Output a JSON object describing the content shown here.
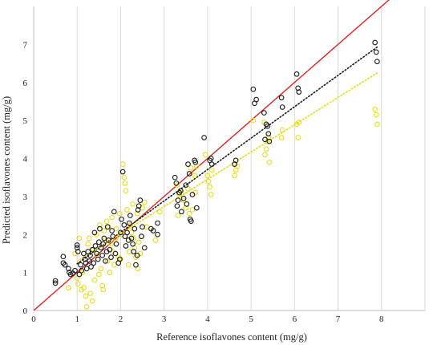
{
  "chart_data": {
    "type": "scatter",
    "xlabel": "Reference isoflavones content (mg/g)",
    "ylabel": "Predicted isoflavones content (mg/g)",
    "xlim": [
      0,
      9
    ],
    "ylim": [
      0,
      8
    ],
    "x_ticks": [
      "0",
      "1",
      "2",
      "3",
      "4",
      "5",
      "6",
      "7",
      "8"
    ],
    "y_ticks": [
      "0",
      "1",
      "2",
      "3",
      "4",
      "5",
      "6",
      "7"
    ],
    "grid": "vertical",
    "legend": "none",
    "colors": {
      "series_black": "#1a1a1a",
      "series_yellow": "#e6dc1e",
      "identity_line": "#e02424",
      "grid": "#d9d9d9",
      "axis": "#bfbfbf"
    },
    "series": [
      {
        "marker": "open-circle",
        "color": "#1a1a1a",
        "points": [
          [
            0.5,
            0.78
          ],
          [
            0.5,
            0.72
          ],
          [
            0.68,
            1.42
          ],
          [
            0.68,
            1.25
          ],
          [
            0.72,
            1.2
          ],
          [
            0.8,
            1.1
          ],
          [
            0.82,
            1.0
          ],
          [
            0.85,
            0.95
          ],
          [
            0.9,
            0.98
          ],
          [
            0.95,
            1.05
          ],
          [
            1.0,
            1.65
          ],
          [
            1.0,
            1.72
          ],
          [
            1.02,
            1.55
          ],
          [
            1.05,
            0.95
          ],
          [
            1.08,
            1.2
          ],
          [
            1.1,
            1.05
          ],
          [
            1.15,
            1.5
          ],
          [
            1.18,
            1.35
          ],
          [
            1.2,
            1.25
          ],
          [
            1.22,
            1.1
          ],
          [
            1.25,
            1.55
          ],
          [
            1.28,
            1.3
          ],
          [
            1.3,
            1.45
          ],
          [
            1.32,
            1.15
          ],
          [
            1.35,
            1.6
          ],
          [
            1.38,
            1.25
          ],
          [
            1.4,
            2.05
          ],
          [
            1.42,
            1.7
          ],
          [
            1.45,
            1.5
          ],
          [
            1.48,
            1.35
          ],
          [
            1.5,
            1.8
          ],
          [
            1.52,
            2.15
          ],
          [
            1.55,
            1.65
          ],
          [
            1.58,
            1.45
          ],
          [
            1.6,
            1.75
          ],
          [
            1.62,
            1.9
          ],
          [
            1.65,
            1.3
          ],
          [
            1.68,
            1.55
          ],
          [
            1.7,
            2.2
          ],
          [
            1.72,
            1.85
          ],
          [
            1.75,
            1.6
          ],
          [
            1.78,
            1.4
          ],
          [
            1.8,
            2.1
          ],
          [
            1.82,
            1.95
          ],
          [
            1.85,
            2.6
          ],
          [
            1.88,
            1.5
          ],
          [
            1.9,
            1.75
          ],
          [
            1.95,
            1.25
          ],
          [
            1.98,
            1.35
          ],
          [
            2.0,
            2.05
          ],
          [
            2.02,
            2.4
          ],
          [
            2.05,
            3.65
          ],
          [
            2.08,
            2.25
          ],
          [
            2.1,
            1.95
          ],
          [
            2.12,
            1.7
          ],
          [
            2.15,
            2.05
          ],
          [
            2.18,
            1.85
          ],
          [
            2.2,
            2.3
          ],
          [
            2.22,
            2.5
          ],
          [
            2.25,
            1.9
          ],
          [
            2.28,
            1.75
          ],
          [
            2.3,
            1.55
          ],
          [
            2.32,
            2.15
          ],
          [
            2.35,
            1.2
          ],
          [
            2.38,
            1.45
          ],
          [
            2.4,
            2.65
          ],
          [
            2.42,
            2.75
          ],
          [
            2.45,
            2.9
          ],
          [
            2.48,
            1.95
          ],
          [
            2.5,
            2.2
          ],
          [
            2.55,
            1.65
          ],
          [
            2.7,
            2.15
          ],
          [
            2.75,
            2.1
          ],
          [
            2.85,
            2.3
          ],
          [
            2.85,
            2.0
          ],
          [
            3.25,
            3.5
          ],
          [
            3.28,
            3.35
          ],
          [
            3.3,
            2.75
          ],
          [
            3.32,
            2.9
          ],
          [
            3.35,
            3.1
          ],
          [
            3.38,
            3.15
          ],
          [
            3.4,
            2.6
          ],
          [
            3.45,
            2.95
          ],
          [
            3.5,
            3.3
          ],
          [
            3.52,
            2.8
          ],
          [
            3.55,
            3.85
          ],
          [
            3.58,
            3.6
          ],
          [
            3.6,
            2.4
          ],
          [
            3.62,
            2.35
          ],
          [
            3.65,
            3.05
          ],
          [
            3.7,
            3.95
          ],
          [
            3.72,
            3.9
          ],
          [
            3.75,
            2.7
          ],
          [
            3.92,
            4.55
          ],
          [
            4.05,
            3.95
          ],
          [
            4.08,
            4.0
          ],
          [
            4.1,
            3.85
          ],
          [
            4.62,
            3.85
          ],
          [
            4.65,
            3.95
          ],
          [
            5.05,
            5.82
          ],
          [
            5.08,
            5.45
          ],
          [
            5.12,
            5.55
          ],
          [
            5.3,
            5.2
          ],
          [
            5.32,
            4.5
          ],
          [
            5.35,
            4.9
          ],
          [
            5.38,
            4.85
          ],
          [
            5.4,
            4.65
          ],
          [
            5.42,
            4.45
          ],
          [
            5.7,
            5.6
          ],
          [
            5.72,
            5.35
          ],
          [
            6.05,
            6.22
          ],
          [
            6.08,
            5.85
          ],
          [
            6.1,
            5.75
          ],
          [
            7.85,
            7.05
          ],
          [
            7.88,
            6.8
          ],
          [
            7.9,
            6.55
          ]
        ]
      },
      {
        "marker": "open-circle",
        "color": "#e6dc1e",
        "points": [
          [
            0.8,
            0.6
          ],
          [
            0.95,
            1.5
          ],
          [
            1.0,
            0.85
          ],
          [
            1.02,
            0.7
          ],
          [
            1.05,
            1.9
          ],
          [
            1.1,
            0.55
          ],
          [
            1.12,
            1.0
          ],
          [
            1.15,
            0.6
          ],
          [
            1.2,
            0.38
          ],
          [
            1.22,
            0.1
          ],
          [
            1.25,
            1.75
          ],
          [
            1.28,
            1.9
          ],
          [
            1.3,
            0.45
          ],
          [
            1.35,
            0.25
          ],
          [
            1.38,
            1.6
          ],
          [
            1.4,
            0.8
          ],
          [
            1.45,
            2.0
          ],
          [
            1.48,
            1.45
          ],
          [
            1.5,
            0.95
          ],
          [
            1.52,
            2.25
          ],
          [
            1.55,
            1.1
          ],
          [
            1.58,
            0.65
          ],
          [
            1.6,
            0.55
          ],
          [
            1.62,
            2.1
          ],
          [
            1.65,
            1.85
          ],
          [
            1.68,
            2.35
          ],
          [
            1.7,
            1.3
          ],
          [
            1.72,
            2.2
          ],
          [
            1.75,
            1.0
          ],
          [
            1.78,
            1.75
          ],
          [
            1.8,
            2.45
          ],
          [
            1.82,
            1.55
          ],
          [
            1.85,
            1.2
          ],
          [
            1.88,
            1.9
          ],
          [
            1.9,
            2.15
          ],
          [
            1.95,
            1.4
          ],
          [
            1.98,
            2.55
          ],
          [
            2.0,
            1.35
          ],
          [
            2.02,
            2.0
          ],
          [
            2.05,
            3.85
          ],
          [
            2.08,
            3.5
          ],
          [
            2.1,
            3.35
          ],
          [
            2.12,
            3.15
          ],
          [
            2.15,
            2.65
          ],
          [
            2.18,
            1.2
          ],
          [
            2.2,
            1.55
          ],
          [
            2.22,
            2.25
          ],
          [
            2.25,
            2.05
          ],
          [
            2.28,
            2.8
          ],
          [
            2.3,
            1.9
          ],
          [
            2.32,
            1.65
          ],
          [
            2.35,
            1.4
          ],
          [
            2.38,
            2.55
          ],
          [
            2.4,
            1.1
          ],
          [
            2.42,
            1.8
          ],
          [
            2.45,
            1.5
          ],
          [
            2.48,
            1.95
          ],
          [
            2.5,
            2.7
          ],
          [
            2.55,
            2.85
          ],
          [
            2.6,
            2.2
          ],
          [
            2.75,
            2.1
          ],
          [
            2.8,
            1.85
          ],
          [
            2.9,
            2.6
          ],
          [
            3.3,
            3.3
          ],
          [
            3.32,
            2.5
          ],
          [
            3.35,
            3.05
          ],
          [
            3.4,
            3.1
          ],
          [
            3.45,
            2.9
          ],
          [
            3.5,
            2.7
          ],
          [
            3.55,
            3.2
          ],
          [
            3.58,
            2.55
          ],
          [
            3.62,
            3.75
          ],
          [
            3.65,
            2.65
          ],
          [
            3.7,
            3.55
          ],
          [
            3.72,
            3.1
          ],
          [
            3.75,
            3.8
          ],
          [
            3.95,
            4.1
          ],
          [
            4.0,
            3.55
          ],
          [
            4.02,
            3.4
          ],
          [
            4.05,
            3.25
          ],
          [
            4.08,
            3.05
          ],
          [
            4.1,
            3.7
          ],
          [
            4.62,
            3.55
          ],
          [
            4.65,
            3.7
          ],
          [
            4.68,
            3.8
          ],
          [
            5.05,
            5.0
          ],
          [
            5.3,
            4.95
          ],
          [
            5.32,
            4.1
          ],
          [
            5.35,
            4.25
          ],
          [
            5.38,
            4.45
          ],
          [
            5.4,
            4.55
          ],
          [
            5.42,
            3.9
          ],
          [
            5.7,
            4.55
          ],
          [
            5.72,
            4.75
          ],
          [
            6.05,
            4.9
          ],
          [
            6.08,
            4.55
          ],
          [
            6.1,
            4.95
          ],
          [
            7.85,
            5.3
          ],
          [
            7.88,
            5.15
          ],
          [
            7.9,
            4.9
          ]
        ]
      }
    ],
    "lines": [
      {
        "style": "solid",
        "color": "#e02424",
        "x": [
          0,
          8.2
        ],
        "y": [
          0,
          8.2
        ]
      },
      {
        "style": "dotted",
        "color": "#1a1a1a",
        "x": [
          1.0,
          7.9
        ],
        "y": [
          1.23,
          6.93
        ]
      },
      {
        "style": "dotted",
        "color": "#e6dc1e",
        "x": [
          1.0,
          7.9
        ],
        "y": [
          1.3,
          6.25
        ]
      }
    ]
  }
}
